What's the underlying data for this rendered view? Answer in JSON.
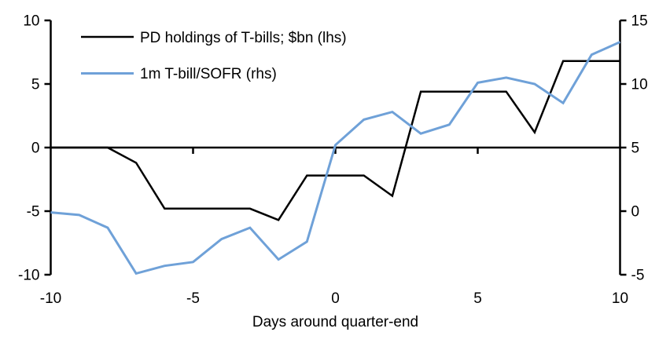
{
  "chart_data": {
    "type": "line",
    "title": "",
    "xlabel": "Days around quarter-end",
    "ylabel_left": "",
    "ylabel_right": "",
    "grid": false,
    "background_color": "#ffffff",
    "axis_color": "#000000",
    "x": [
      -10,
      -9,
      -8,
      -7,
      -6,
      -5,
      -4,
      -3,
      -2,
      -1,
      0,
      1,
      2,
      3,
      4,
      5,
      6,
      7,
      8,
      9,
      10
    ],
    "series": [
      {
        "name": "PD holdings of T-bills; $bn (lhs)",
        "axis": "left",
        "color": "#000000",
        "stroke_width": 2.5,
        "values": [
          0,
          0,
          0,
          -1.2,
          -4.8,
          -4.8,
          -4.8,
          -4.8,
          -5.7,
          -2.2,
          -2.2,
          -2.2,
          -3.8,
          4.4,
          4.4,
          4.4,
          4.4,
          1.2,
          6.8,
          6.8,
          6.8
        ]
      },
      {
        "name": "1m T-bill/SOFR (rhs)",
        "axis": "right",
        "color": "#6FA1D8",
        "stroke_width": 3,
        "values": [
          -0.1,
          -0.3,
          -1.3,
          -4.9,
          -4.3,
          -4.0,
          -2.2,
          -1.3,
          -3.8,
          -2.4,
          5.2,
          7.2,
          7.8,
          6.1,
          6.8,
          10.1,
          10.5,
          10.0,
          8.5,
          12.3,
          13.3
        ]
      }
    ],
    "x_axis": {
      "min": -10,
      "max": 10,
      "ticks_labeled": [
        -10,
        -5,
        0,
        5,
        10
      ],
      "ticks_marked": [
        -5,
        0,
        5
      ]
    },
    "left_axis": {
      "min": -10,
      "max": 10,
      "ticks": [
        10,
        5,
        0,
        -5,
        -10
      ]
    },
    "right_axis": {
      "min": -5,
      "max": 15,
      "ticks": [
        15,
        10,
        5,
        0,
        -5
      ]
    },
    "legend": {
      "position": "top-left"
    }
  }
}
